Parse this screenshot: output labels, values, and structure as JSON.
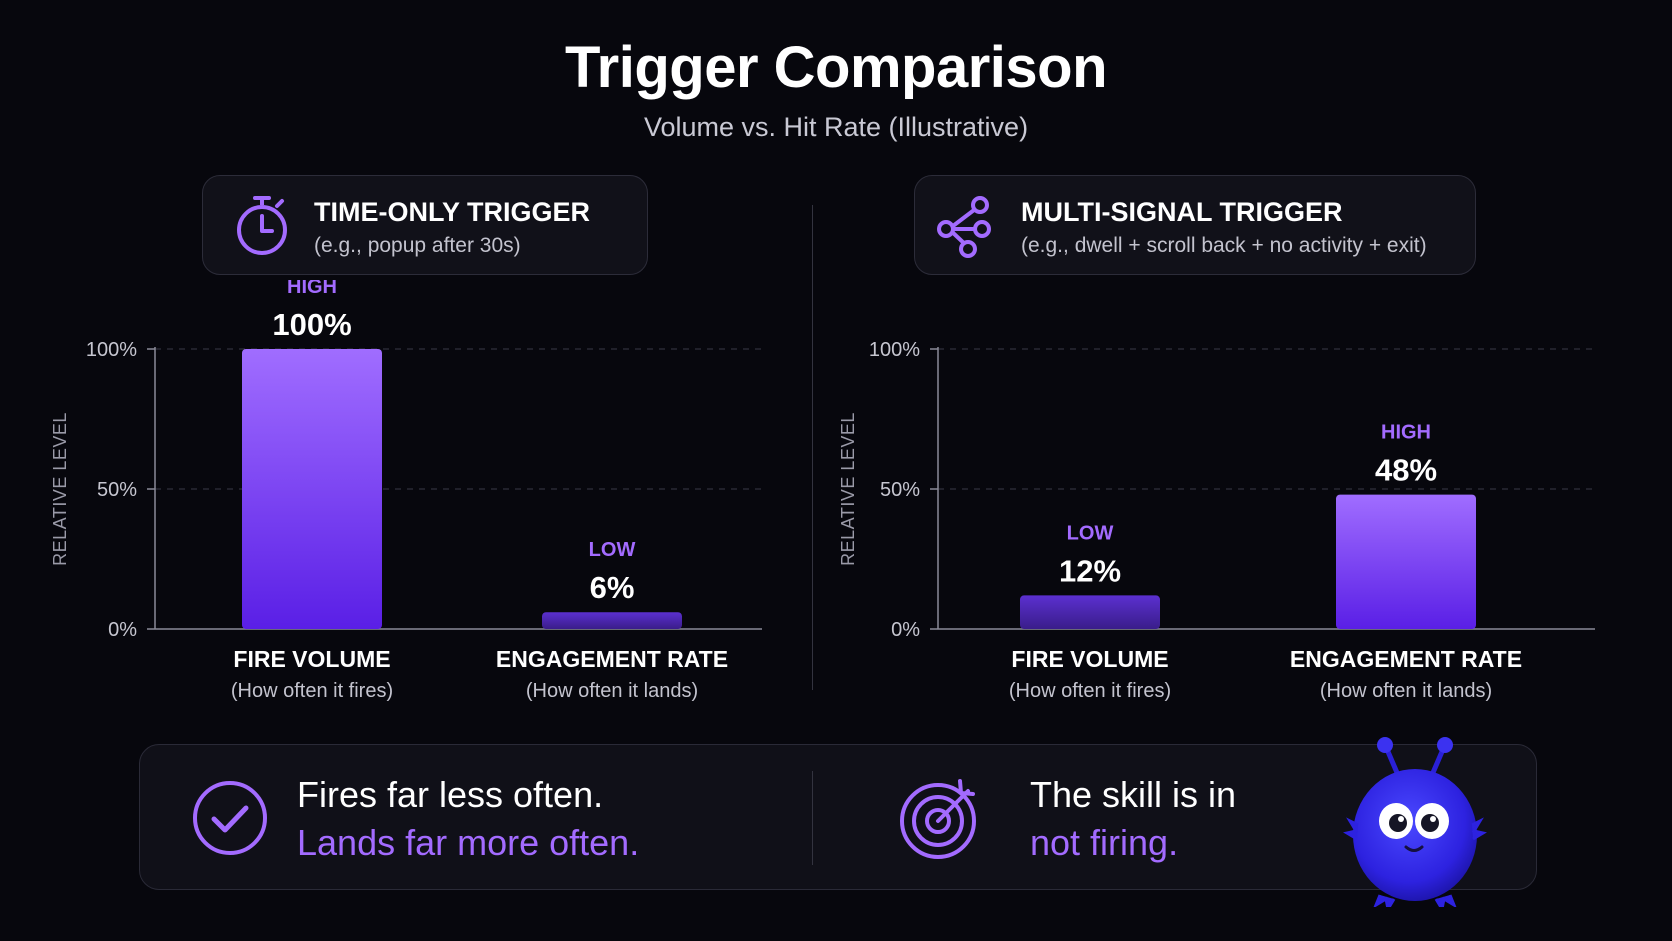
{
  "header": {
    "title": "Trigger Comparison",
    "subtitle": "Volume vs. Hit Rate (Illustrative)"
  },
  "colors": {
    "accent": "#a36bff",
    "bar_top": "#a06dff",
    "bar_bottom": "#5a1fe6",
    "bar_low_top": "#5b30d0",
    "bar_low_bottom": "#3a1d8a",
    "background": "#07070d"
  },
  "panels": [
    {
      "icon": "stopwatch-icon",
      "card_title": "TIME-ONLY TRIGGER",
      "card_sub": "(e.g., popup after 30s)"
    },
    {
      "icon": "share-network-icon",
      "card_title": "MULTI-SIGNAL TRIGGER",
      "card_sub": "(e.g., dwell + scroll back + no activity + exit)"
    }
  ],
  "chart_data": [
    {
      "type": "bar",
      "categories": [
        "FIRE VOLUME",
        "ENGAGEMENT RATE"
      ],
      "category_sublabels": [
        "(How often it fires)",
        "(How often it lands)"
      ],
      "values": [
        100,
        6
      ],
      "value_labels": [
        "100%",
        "6%"
      ],
      "tags": [
        "HIGH",
        "LOW"
      ],
      "ylabel": "RELATIVE LEVEL",
      "ylim": [
        0,
        100
      ],
      "yticks": [
        0,
        50,
        100
      ],
      "ytick_labels": [
        "0%",
        "50%",
        "100%"
      ],
      "grid": true
    },
    {
      "type": "bar",
      "categories": [
        "FIRE VOLUME",
        "ENGAGEMENT RATE"
      ],
      "category_sublabels": [
        "(How often it fires)",
        "(How often it lands)"
      ],
      "values": [
        12,
        48
      ],
      "value_labels": [
        "12%",
        "48%"
      ],
      "tags": [
        "LOW",
        "HIGH"
      ],
      "ylabel": "RELATIVE LEVEL",
      "ylim": [
        0,
        100
      ],
      "yticks": [
        0,
        50,
        100
      ],
      "ytick_labels": [
        "0%",
        "50%",
        "100%"
      ],
      "grid": true
    }
  ],
  "summary": {
    "left_icon": "check-circle-icon",
    "left_line1": "Fires far less often.",
    "left_line2": "Lands far more often.",
    "right_icon": "target-arrow-icon",
    "right_line1": "The skill is in",
    "right_line2": "not firing.",
    "mascot": "blue-fuzzy-mascot"
  }
}
